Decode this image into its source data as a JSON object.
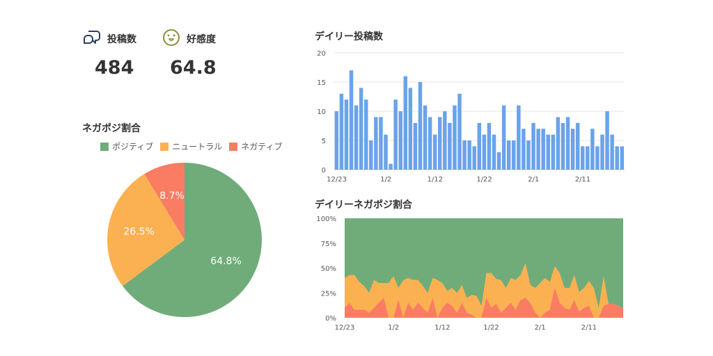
{
  "stats": {
    "posts": {
      "label": "投稿数",
      "value": "484",
      "icon": "chat-bubbles-icon"
    },
    "favorability": {
      "label": "好感度",
      "value": "64.8",
      "icon": "smiley-face-icon"
    }
  },
  "colors": {
    "positive": "#6fac7a",
    "neutral": "#fbb152",
    "negative": "#f97c63",
    "bar": "#6aa3ea",
    "icon_posts": "#2c3e66",
    "icon_smile": "#8c8c3a"
  },
  "chart_data": [
    {
      "type": "pie",
      "title": "ネガポジ割合",
      "legend_position": "top",
      "labels": [
        "ポジティブ",
        "ニュートラル",
        "ネガティブ"
      ],
      "values": [
        64.8,
        26.5,
        8.7
      ],
      "value_labels": [
        "64.8%",
        "26.5%",
        "8.7%"
      ]
    },
    {
      "type": "bar",
      "title": "デイリー投稿数",
      "x_tick_labels": [
        "12/23",
        "1/2",
        "1/12",
        "1/22",
        "2/1",
        "2/11"
      ],
      "x_tick_index": [
        0,
        10,
        20,
        30,
        40,
        50
      ],
      "ylim": [
        0,
        20
      ],
      "y_ticks": [
        0,
        5,
        10,
        15,
        20
      ],
      "grid": true,
      "values": [
        10,
        13,
        12,
        17,
        11,
        14,
        12,
        5,
        9,
        9,
        6,
        1,
        12,
        10,
        16,
        14,
        8,
        15,
        11,
        9,
        6,
        9,
        10,
        8,
        11,
        13,
        5,
        5,
        4,
        8,
        6,
        8,
        6,
        3,
        11,
        5,
        5,
        11,
        7,
        5,
        8,
        7,
        7,
        6,
        6,
        9,
        8,
        9,
        7,
        8,
        4,
        4,
        7,
        4,
        6,
        10,
        6,
        4,
        4
      ]
    },
    {
      "type": "area",
      "title": "デイリーネガポジ割合",
      "stacked": true,
      "normalized": true,
      "x_tick_labels": [
        "12/23",
        "1/2",
        "1/12",
        "1/22",
        "2/1",
        "2/11"
      ],
      "x_tick_index": [
        0,
        10,
        20,
        30,
        40,
        50
      ],
      "y_tick_labels": [
        "0%",
        "25%",
        "50%",
        "75%",
        "100%"
      ],
      "ylim": [
        0,
        100
      ],
      "series": [
        {
          "name": "ネガティブ",
          "values": [
            10,
            15,
            8,
            8,
            8,
            5,
            10,
            15,
            20,
            0,
            0,
            18,
            0,
            15,
            8,
            15,
            10,
            5,
            20,
            0,
            10,
            15,
            12,
            5,
            15,
            5,
            3,
            0,
            0,
            20,
            10,
            14,
            5,
            10,
            15,
            8,
            18,
            20,
            15,
            5,
            0,
            5,
            8,
            30,
            15,
            10,
            8,
            18,
            6,
            10,
            12,
            0,
            0,
            12,
            14,
            14,
            12,
            10
          ]
        },
        {
          "name": "ニュートラル",
          "values": [
            30,
            28,
            35,
            28,
            24,
            20,
            28,
            20,
            15,
            35,
            42,
            12,
            38,
            25,
            30,
            23,
            22,
            20,
            20,
            38,
            25,
            12,
            18,
            20,
            18,
            15,
            20,
            22,
            12,
            25,
            35,
            25,
            33,
            20,
            25,
            30,
            25,
            35,
            18,
            25,
            35,
            35,
            28,
            22,
            30,
            20,
            22,
            25,
            20,
            20,
            25,
            30,
            10,
            30,
            0,
            0,
            0,
            0
          ]
        }
      ]
    }
  ]
}
